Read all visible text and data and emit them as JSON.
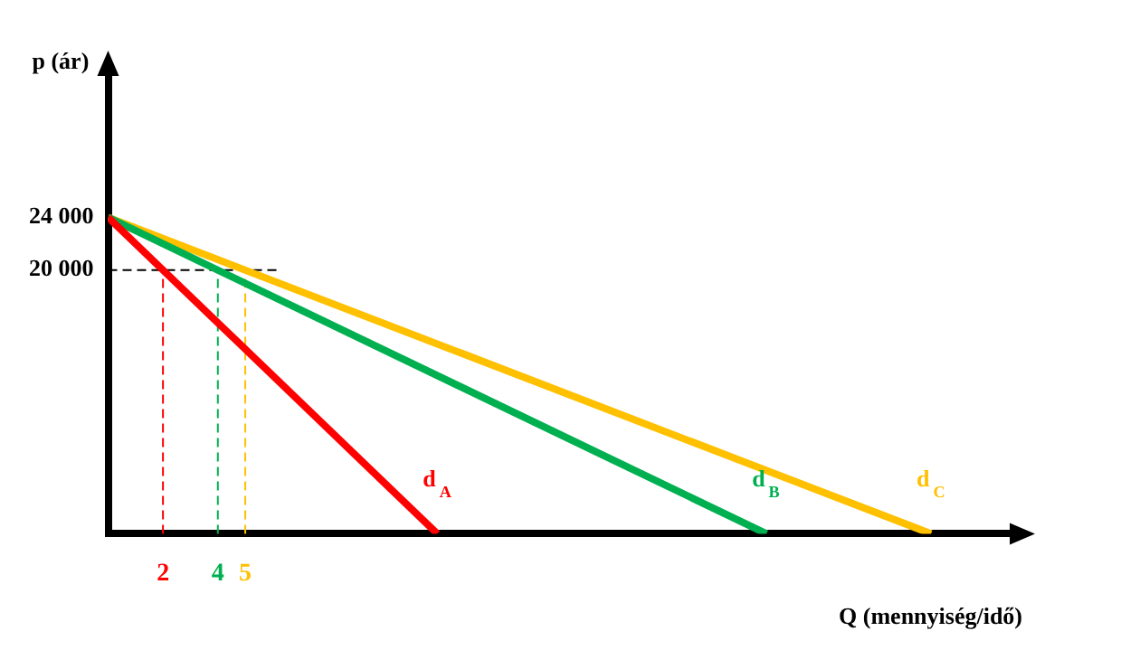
{
  "chart_data": {
    "type": "line",
    "xlabel": "Q (mennyiség/idő)",
    "ylabel": "p (ár)",
    "series": [
      {
        "name": "d$_{A}$",
        "color": "#ff0000",
        "x": [
          0,
          12
        ],
        "values": [
          24000,
          0
        ]
      },
      {
        "name": "d$_{B}$",
        "color": "#00b050",
        "x": [
          0,
          24
        ],
        "values": [
          24000,
          0
        ]
      },
      {
        "name": "d$_{C}$",
        "color": "#ffc000",
        "x": [
          0,
          30
        ],
        "values": [
          24000,
          0
        ]
      }
    ],
    "xlim": [
      0,
      33
    ],
    "xticks": [
      2,
      4,
      5
    ],
    "ylim": [
      0,
      35000
    ],
    "yticks": [
      {
        "value": 20000,
        "label": "20 000"
      },
      {
        "value": 24000,
        "label": "24 000"
      }
    ],
    "ref_lines": [
      {
        "axis": "y",
        "value": 20000,
        "color": "#000000",
        "line_style": "dashed"
      },
      {
        "axis": "x",
        "value": 2,
        "color": "#ff0000",
        "line_style": "dashed"
      },
      {
        "axis": "x",
        "value": 4,
        "color": "#00b050",
        "line_style": "dashed"
      },
      {
        "axis": "x",
        "value": 5,
        "color": "#ffc000",
        "line_style": "dashed"
      }
    ],
    "grid": false,
    "legend": false,
    "marker": "none",
    "line_style": "solid"
  }
}
